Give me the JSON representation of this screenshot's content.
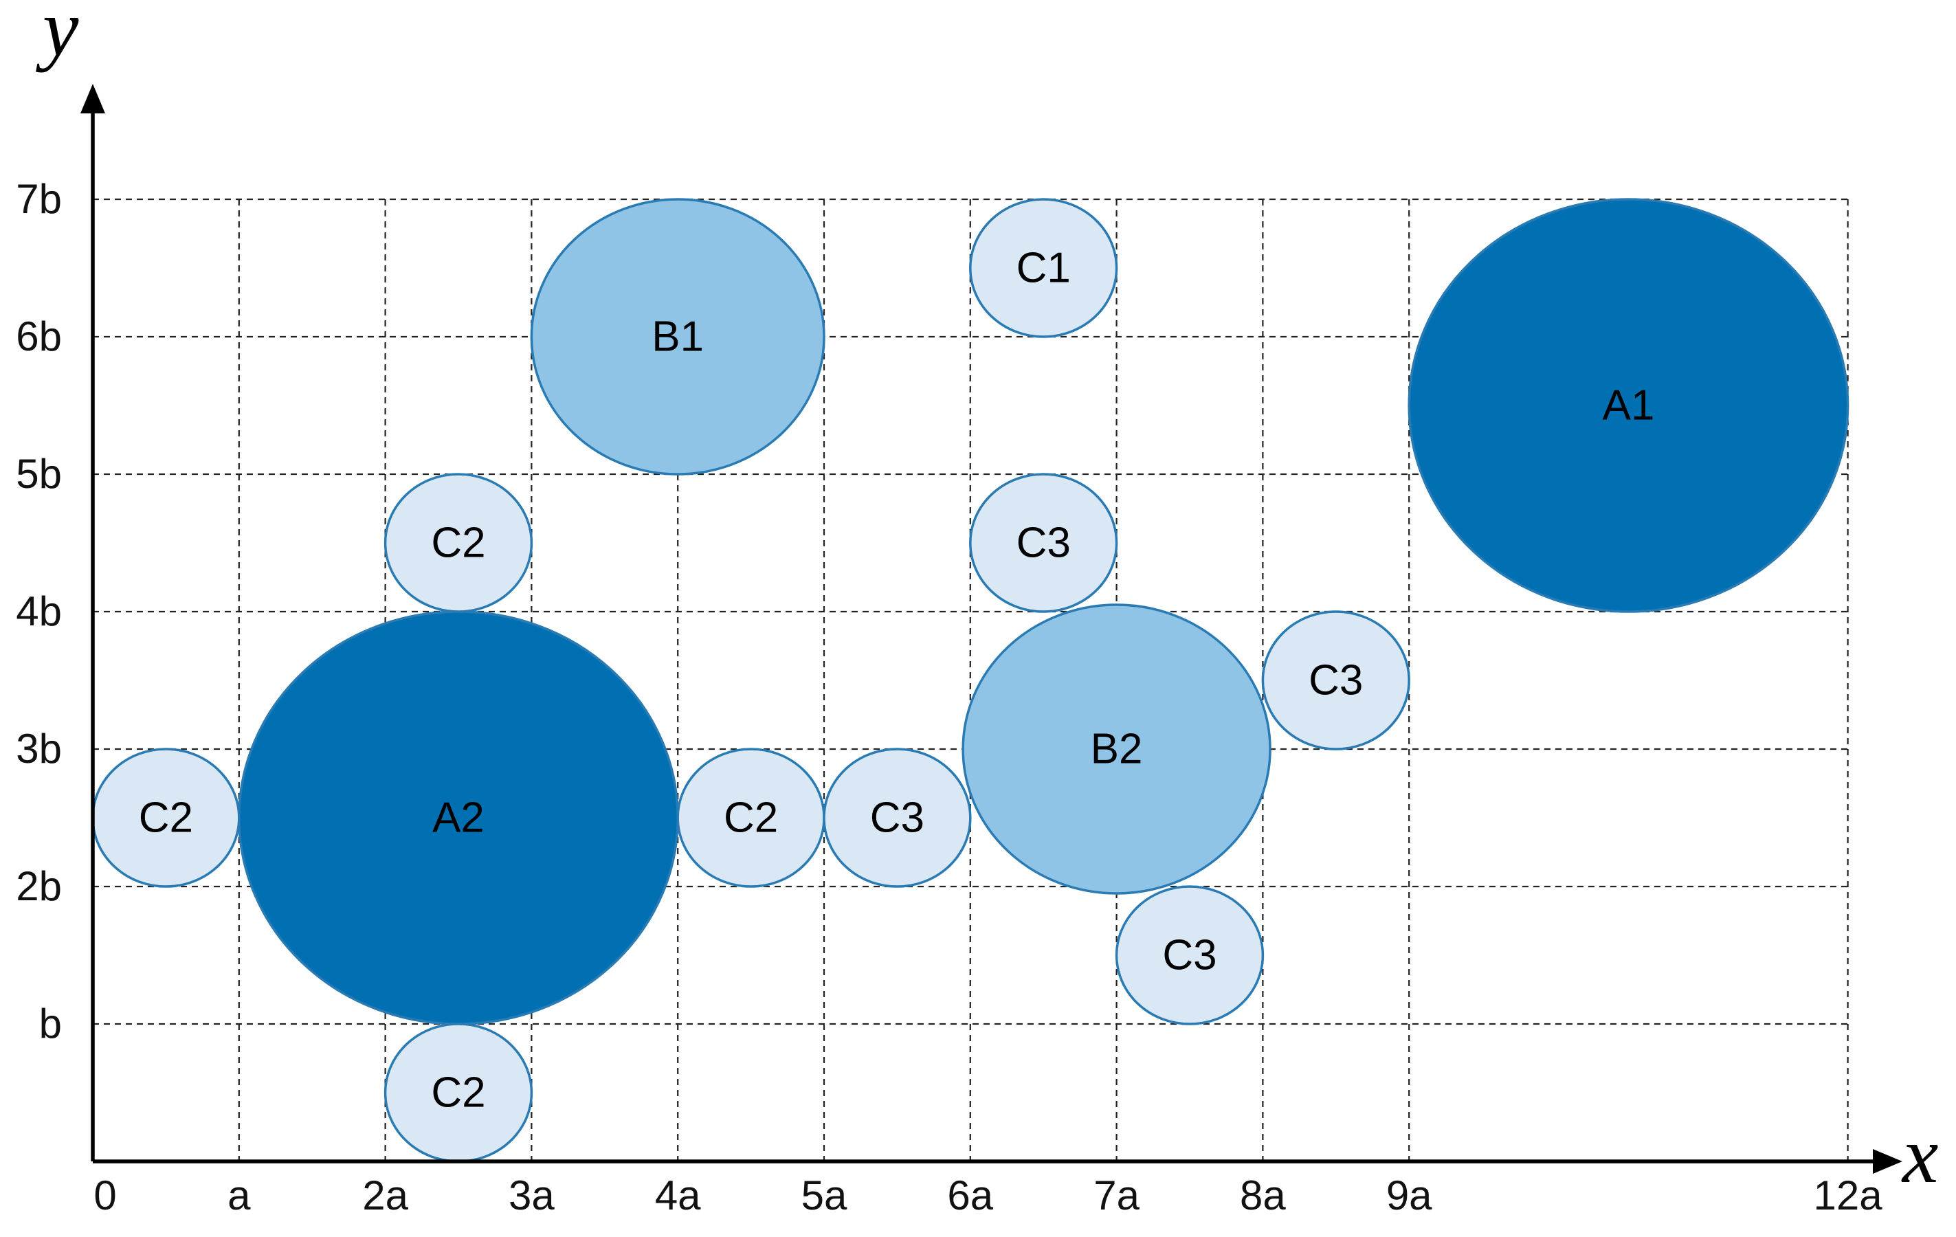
{
  "axes": {
    "x_name": "x",
    "y_name": "y",
    "x_ticks": [
      {
        "value": 0,
        "label": "0"
      },
      {
        "value": 1,
        "label": "a"
      },
      {
        "value": 2,
        "label": "2a"
      },
      {
        "value": 3,
        "label": "3a"
      },
      {
        "value": 4,
        "label": "4a"
      },
      {
        "value": 5,
        "label": "5a"
      },
      {
        "value": 6,
        "label": "6a"
      },
      {
        "value": 7,
        "label": "7a"
      },
      {
        "value": 8,
        "label": "8a"
      },
      {
        "value": 9,
        "label": "9a"
      },
      {
        "value": 12,
        "label": "12a"
      }
    ],
    "y_ticks": [
      {
        "value": 1,
        "label": "b"
      },
      {
        "value": 2,
        "label": "2b"
      },
      {
        "value": 3,
        "label": "3b"
      },
      {
        "value": 4,
        "label": "4b"
      },
      {
        "value": 5,
        "label": "5b"
      },
      {
        "value": 6,
        "label": "6b"
      },
      {
        "value": 7,
        "label": "7b"
      }
    ],
    "x_range": [
      0,
      12
    ],
    "y_range": [
      0,
      7
    ]
  },
  "grid": {
    "style": "dashed",
    "vertical_at": [
      1,
      2,
      3,
      4,
      5,
      6,
      7,
      8,
      9,
      12
    ],
    "horizontal_at": [
      1,
      2,
      3,
      4,
      5,
      6,
      7
    ]
  },
  "colors": {
    "A": "#0070b3",
    "B": "#8fc4e7",
    "C": "#dae8f5",
    "outline": "#2a7bb3"
  },
  "circles": [
    {
      "label": "A1",
      "class": "A",
      "cx": 10.5,
      "cy": 5.5,
      "r": 1.5
    },
    {
      "label": "A2",
      "class": "A",
      "cx": 2.5,
      "cy": 2.5,
      "r": 1.5
    },
    {
      "label": "B1",
      "class": "B",
      "cx": 4.0,
      "cy": 6.0,
      "r": 1.0
    },
    {
      "label": "B2",
      "class": "B",
      "cx": 7.0,
      "cy": 3.0,
      "r": 1.05
    },
    {
      "label": "C1",
      "class": "C",
      "cx": 6.5,
      "cy": 6.5,
      "r": 0.5
    },
    {
      "label": "C2",
      "class": "C",
      "cx": 2.5,
      "cy": 4.5,
      "r": 0.5
    },
    {
      "label": "C2",
      "class": "C",
      "cx": 0.5,
      "cy": 2.5,
      "r": 0.5
    },
    {
      "label": "C2",
      "class": "C",
      "cx": 4.5,
      "cy": 2.5,
      "r": 0.5
    },
    {
      "label": "C2",
      "class": "C",
      "cx": 2.5,
      "cy": 0.5,
      "r": 0.5
    },
    {
      "label": "C3",
      "class": "C",
      "cx": 6.5,
      "cy": 4.5,
      "r": 0.5
    },
    {
      "label": "C3",
      "class": "C",
      "cx": 5.5,
      "cy": 2.5,
      "r": 0.5
    },
    {
      "label": "C3",
      "class": "C",
      "cx": 8.5,
      "cy": 3.5,
      "r": 0.5
    },
    {
      "label": "C3",
      "class": "C",
      "cx": 7.5,
      "cy": 1.5,
      "r": 0.5
    }
  ]
}
